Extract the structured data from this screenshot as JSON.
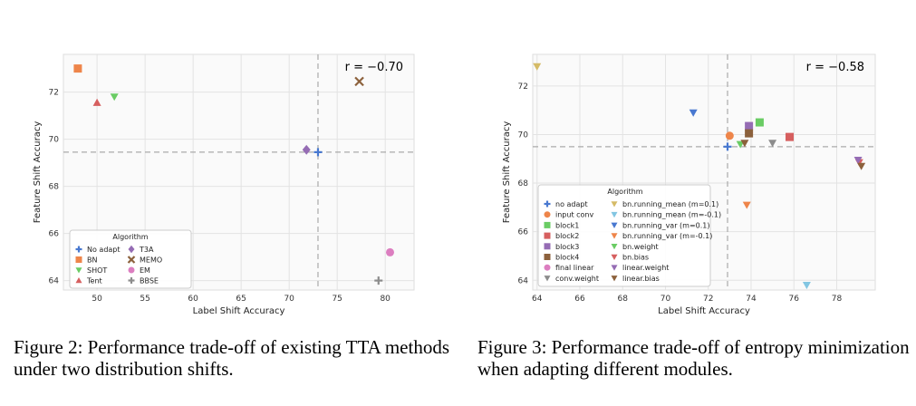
{
  "chart_data": [
    {
      "type": "scatter",
      "xlabel": "Label Shift Accuracy",
      "ylabel": "Feature Shift Accuracy",
      "xlim": [
        46.5,
        83
      ],
      "ylim": [
        63.6,
        73.6
      ],
      "xticks": [
        50,
        55,
        60,
        65,
        70,
        75,
        80
      ],
      "yticks": [
        64,
        66,
        68,
        70,
        72
      ],
      "grid": true,
      "annotation": "r = −0.70",
      "reference_lines": {
        "x": 73.0,
        "y": 69.45
      },
      "legend": {
        "title": "Algorithm",
        "placement": "bottom-left",
        "columns": 2
      },
      "series": [
        {
          "name": "No adapt",
          "marker": "plus",
          "color": "#4878d0",
          "x": [
            73.0
          ],
          "y": [
            69.45
          ]
        },
        {
          "name": "BN",
          "marker": "square",
          "color": "#ee854a",
          "x": [
            48.0
          ],
          "y": [
            73.0
          ]
        },
        {
          "name": "SHOT",
          "marker": "triangle-down",
          "color": "#6acc64",
          "x": [
            51.8
          ],
          "y": [
            71.8
          ]
        },
        {
          "name": "Tent",
          "marker": "triangle-up",
          "color": "#d65f5f",
          "x": [
            50.0
          ],
          "y": [
            71.55
          ]
        },
        {
          "name": "T3A",
          "marker": "diamond",
          "color": "#956cb4",
          "x": [
            71.8
          ],
          "y": [
            69.55
          ]
        },
        {
          "name": "MEMO",
          "marker": "x",
          "color": "#8c613c",
          "x": [
            77.3
          ],
          "y": [
            72.45
          ]
        },
        {
          "name": "EM",
          "marker": "circle",
          "color": "#dc7ec0",
          "x": [
            80.5
          ],
          "y": [
            65.2
          ]
        },
        {
          "name": "BBSE",
          "marker": "plus",
          "color": "#8c8c8c",
          "x": [
            79.3
          ],
          "y": [
            64.0
          ]
        }
      ]
    },
    {
      "type": "scatter",
      "xlabel": "Label Shift Accuracy",
      "ylabel": "Feature Shift Accuracy",
      "xlim": [
        63.8,
        79.8
      ],
      "ylim": [
        63.6,
        73.3
      ],
      "xticks": [
        64,
        66,
        68,
        70,
        72,
        74,
        76,
        78
      ],
      "yticks": [
        64,
        66,
        68,
        70,
        72
      ],
      "grid": true,
      "annotation": "r = −0.58",
      "reference_lines": {
        "x": 72.9,
        "y": 69.5
      },
      "legend": {
        "title": "Algorithm",
        "placement": "bottom-left",
        "columns": 2
      },
      "series": [
        {
          "name": "no adapt",
          "marker": "plus",
          "color": "#4878d0",
          "x": [
            72.9
          ],
          "y": [
            69.5
          ]
        },
        {
          "name": "input conv",
          "marker": "circle",
          "color": "#ee854a",
          "x": [
            73.0
          ],
          "y": [
            69.95
          ]
        },
        {
          "name": "block1",
          "marker": "square",
          "color": "#6acc64",
          "x": [
            74.4
          ],
          "y": [
            70.5
          ]
        },
        {
          "name": "block2",
          "marker": "square",
          "color": "#d65f5f",
          "x": [
            75.8
          ],
          "y": [
            69.9
          ]
        },
        {
          "name": "block3",
          "marker": "square",
          "color": "#956cb4",
          "x": [
            73.9
          ],
          "y": [
            70.35
          ]
        },
        {
          "name": "block4",
          "marker": "square",
          "color": "#8c613c",
          "x": [
            73.9
          ],
          "y": [
            70.05
          ]
        },
        {
          "name": "final linear",
          "marker": "circle",
          "color": "#dc7ec0",
          "x": [],
          "y": []
        },
        {
          "name": "conv.weight",
          "marker": "triangle-down",
          "color": "#8c8c8c",
          "x": [
            75.0
          ],
          "y": [
            69.65
          ]
        },
        {
          "name": "bn.running_mean (m=0.1)",
          "marker": "triangle-down",
          "color": "#d5bb67",
          "x": [
            64.0
          ],
          "y": [
            72.8
          ]
        },
        {
          "name": "bn.running_mean (m=-0.1)",
          "marker": "triangle-down",
          "color": "#82c6e2",
          "x": [
            76.6
          ],
          "y": [
            63.8
          ]
        },
        {
          "name": "bn.running_var (m=0.1)",
          "marker": "triangle-down",
          "color": "#4878d0",
          "x": [
            71.3
          ],
          "y": [
            70.9
          ]
        },
        {
          "name": "bn.running_var (m=-0.1)",
          "marker": "triangle-down",
          "color": "#ee854a",
          "x": [
            73.8
          ],
          "y": [
            67.1
          ]
        },
        {
          "name": "bn.weight",
          "marker": "triangle-down",
          "color": "#6acc64",
          "x": [
            73.5
          ],
          "y": [
            69.6
          ]
        },
        {
          "name": "bn.bias",
          "marker": "triangle-down",
          "color": "#d65f5f",
          "x": [
            79.05
          ],
          "y": [
            68.85
          ]
        },
        {
          "name": "linear.weight",
          "marker": "triangle-down",
          "color": "#956cb4",
          "x": [
            79.0
          ],
          "y": [
            68.95
          ]
        },
        {
          "name": "linear.bias",
          "marker": "triangle-down",
          "color": "#8c613c",
          "x": [
            79.15
          ],
          "y": [
            68.7
          ]
        }
      ],
      "extra_points": [
        {
          "marker": "triangle-down",
          "color": "#8c613c",
          "x": 73.7,
          "y": 69.65
        }
      ]
    }
  ],
  "captions": {
    "fig2": "Figure 2: Performance trade-off of existing TTA methods under two distribution shifts.",
    "fig3": "Figure 3: Performance trade-off of entropy minimization when adapting different modules."
  }
}
